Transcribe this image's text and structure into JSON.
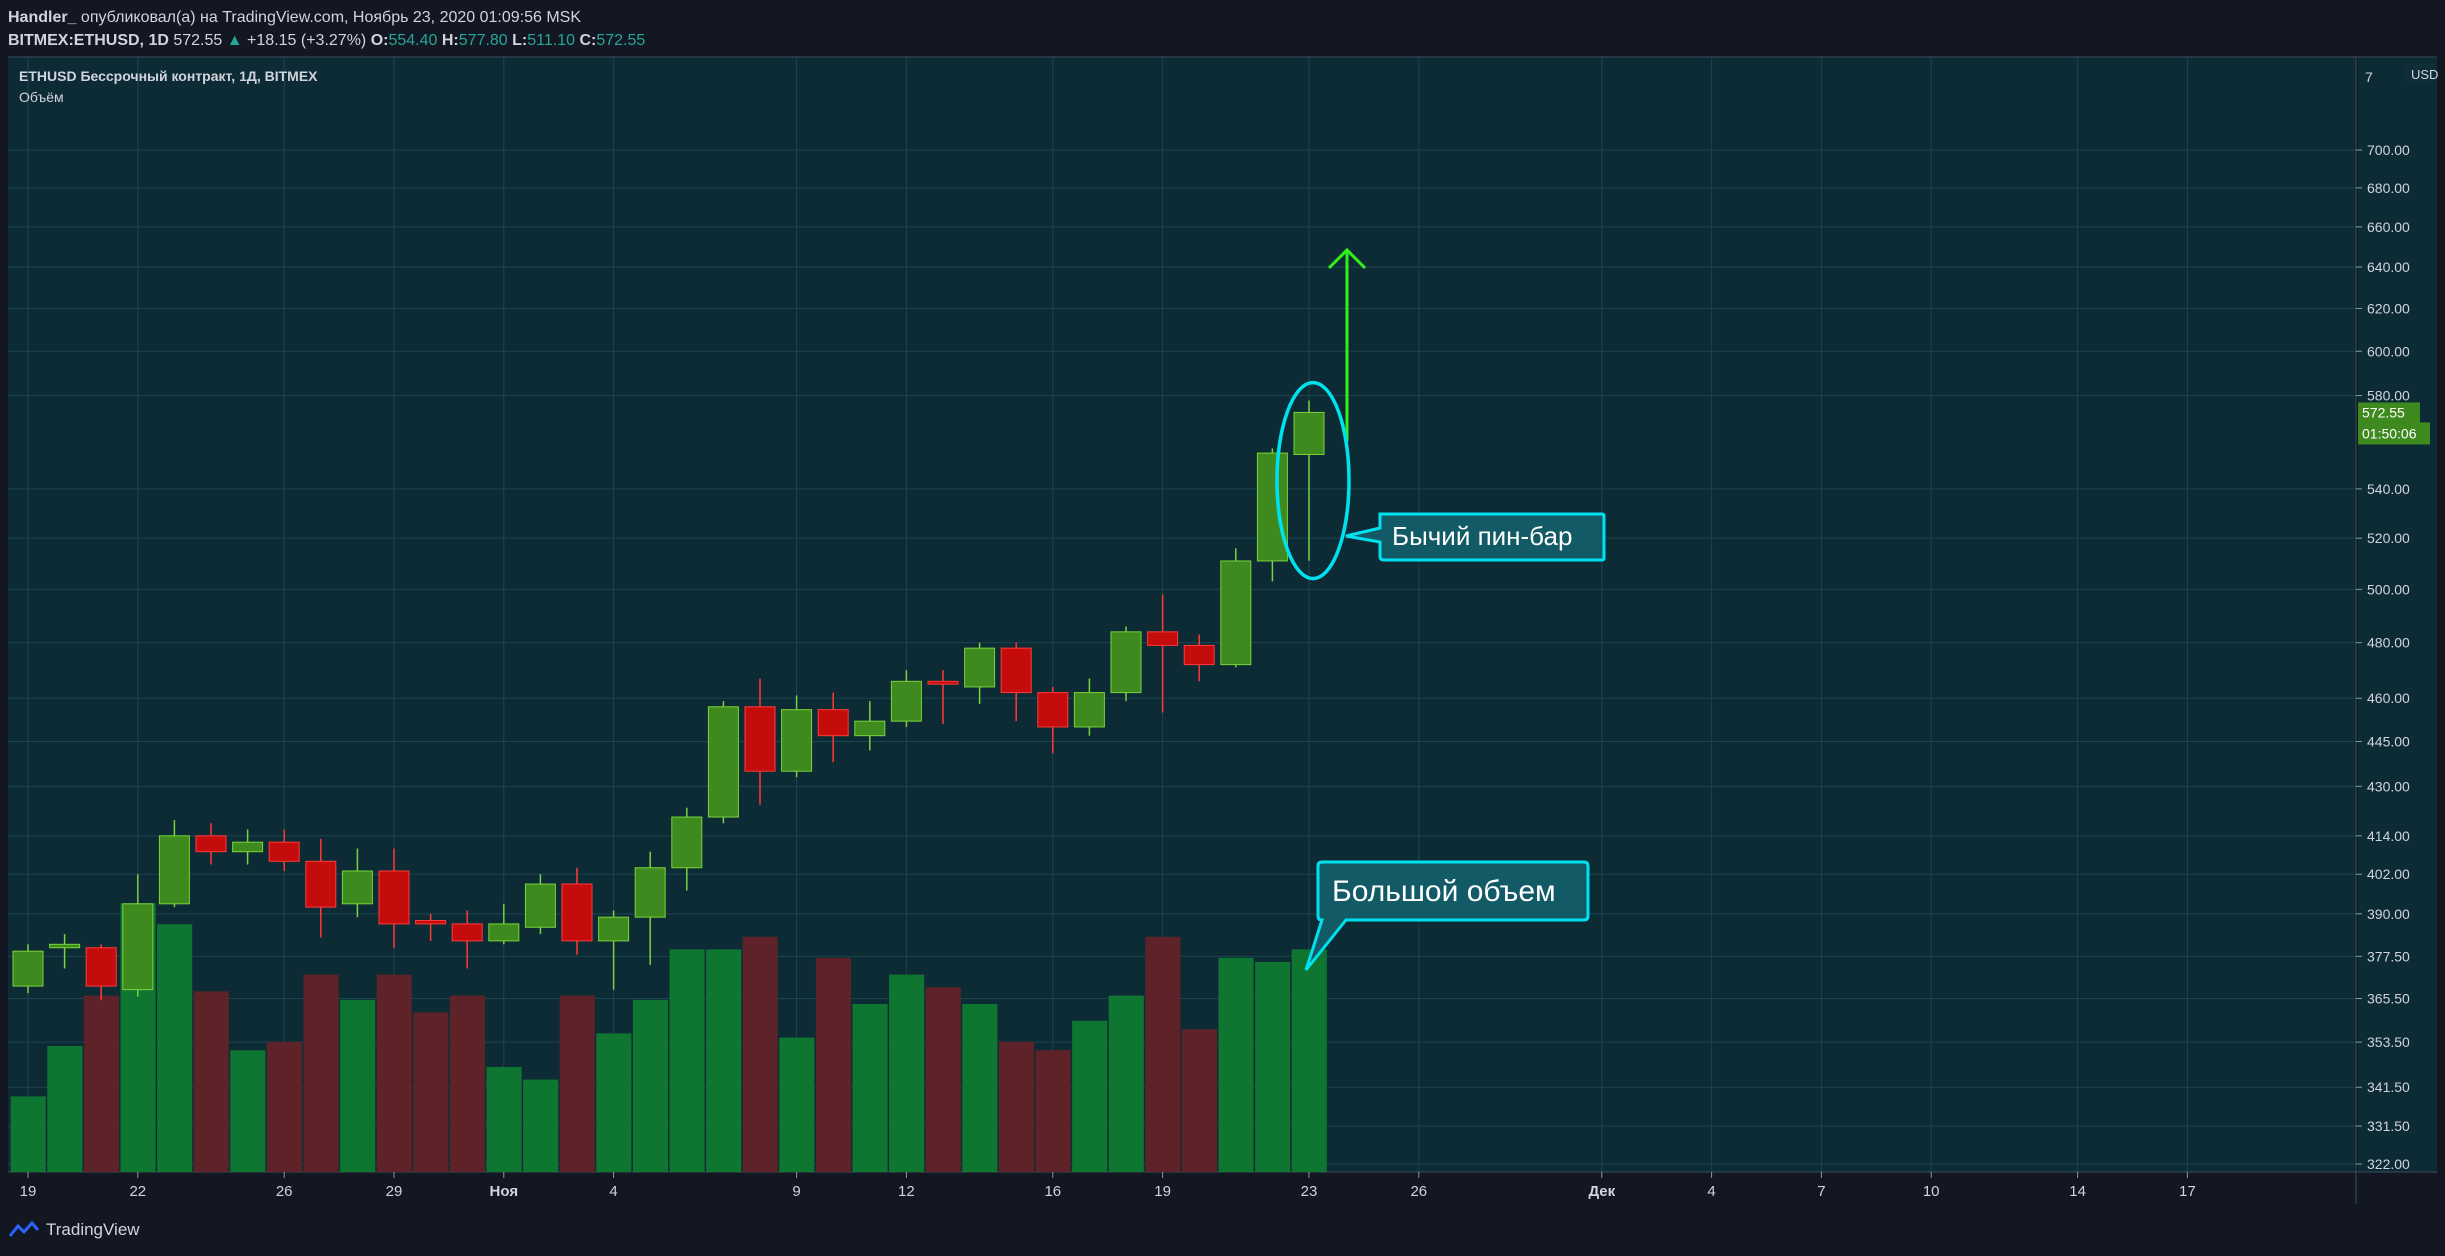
{
  "header": {
    "author": "Handler_",
    "published": "опубликовал(а) на TradingView.com, Ноябрь 23, 2020 01:09:56 MSK",
    "symbol": "BITMEX:ETHUSD, 1D",
    "last": "572.55",
    "change_arrow": "▲",
    "change": "+18.15 (+3.27%)",
    "o_label": "O:",
    "o": "554.40",
    "h_label": "H:",
    "h": "577.80",
    "l_label": "L:",
    "l": "511.10",
    "c_label": "C:",
    "c": "572.55"
  },
  "legend": {
    "title": "ETHUSD Бессрочный контракт, 1Д, BITMEX",
    "volume_label": "Объём"
  },
  "price_scale": {
    "currency": "USD",
    "top_label": "7",
    "last_price": "572.55",
    "countdown": "01:50:06"
  },
  "annotations": {
    "pin_bar": "Бычий пин-бар",
    "big_volume": "Большой объем"
  },
  "footer": {
    "brand": "TradingView"
  },
  "colors": {
    "background": "#0d2b34",
    "up": "#3e8a1f",
    "down": "#c40c0c",
    "vol_up": "#0f7632",
    "vol_down": "#5e2329",
    "accent_cyan": "#00e1ef",
    "arrow": "#2ff01c"
  },
  "chart_data": {
    "type": "candlestick",
    "y_scale": "log",
    "y_ticks": [
      "700.00",
      "680.00",
      "660.00",
      "640.00",
      "620.00",
      "600.00",
      "580.00",
      "540.00",
      "520.00",
      "500.00",
      "480.00",
      "460.00",
      "445.00",
      "430.00",
      "414.00",
      "402.00",
      "390.00",
      "377.50",
      "365.50",
      "353.50",
      "341.50",
      "331.50",
      "322.00"
    ],
    "x_ticks": [
      {
        "label": "19",
        "day": 0
      },
      {
        "label": "22",
        "day": 3
      },
      {
        "label": "26",
        "day": 7
      },
      {
        "label": "29",
        "day": 10
      },
      {
        "label": "Ноя",
        "day": 13
      },
      {
        "label": "4",
        "day": 16
      },
      {
        "label": "9",
        "day": 21
      },
      {
        "label": "12",
        "day": 24
      },
      {
        "label": "16",
        "day": 28
      },
      {
        "label": "19",
        "day": 31
      },
      {
        "label": "23",
        "day": 35
      },
      {
        "label": "26",
        "day": 38
      },
      {
        "label": "Дек",
        "day": 43
      },
      {
        "label": "4",
        "day": 46
      },
      {
        "label": "7",
        "day": 49
      },
      {
        "label": "10",
        "day": 52
      },
      {
        "label": "14",
        "day": 56
      },
      {
        "label": "17",
        "day": 59
      }
    ],
    "candles": [
      {
        "o": 369,
        "h": 381,
        "l": 367,
        "c": 379
      },
      {
        "o": 380,
        "h": 384,
        "l": 374,
        "c": 381
      },
      {
        "o": 380,
        "h": 381,
        "l": 365,
        "c": 369
      },
      {
        "o": 368,
        "h": 402,
        "l": 366,
        "c": 393
      },
      {
        "o": 393,
        "h": 419,
        "l": 392,
        "c": 414
      },
      {
        "o": 414,
        "h": 418,
        "l": 405,
        "c": 409
      },
      {
        "o": 409,
        "h": 416,
        "l": 405,
        "c": 412
      },
      {
        "o": 412,
        "h": 416,
        "l": 403,
        "c": 406
      },
      {
        "o": 406,
        "h": 413,
        "l": 383,
        "c": 392
      },
      {
        "o": 393,
        "h": 410,
        "l": 389,
        "c": 403
      },
      {
        "o": 403,
        "h": 410,
        "l": 380,
        "c": 387
      },
      {
        "o": 388,
        "h": 390,
        "l": 382,
        "c": 387
      },
      {
        "o": 387,
        "h": 391,
        "l": 374,
        "c": 382
      },
      {
        "o": 382,
        "h": 393,
        "l": 381,
        "c": 387
      },
      {
        "o": 386,
        "h": 402,
        "l": 384,
        "c": 399
      },
      {
        "o": 399,
        "h": 404,
        "l": 378,
        "c": 382
      },
      {
        "o": 382,
        "h": 391,
        "l": 368,
        "c": 389
      },
      {
        "o": 389,
        "h": 409,
        "l": 375,
        "c": 404
      },
      {
        "o": 404,
        "h": 423,
        "l": 397,
        "c": 420
      },
      {
        "o": 420,
        "h": 459,
        "l": 418,
        "c": 457
      },
      {
        "o": 457,
        "h": 467,
        "l": 424,
        "c": 435
      },
      {
        "o": 435,
        "h": 461,
        "l": 433,
        "c": 456
      },
      {
        "o": 456,
        "h": 462,
        "l": 438,
        "c": 447
      },
      {
        "o": 447,
        "h": 459,
        "l": 442,
        "c": 452
      },
      {
        "o": 452,
        "h": 470,
        "l": 450,
        "c": 466
      },
      {
        "o": 466,
        "h": 470,
        "l": 451,
        "c": 465
      },
      {
        "o": 464,
        "h": 480,
        "l": 458,
        "c": 478
      },
      {
        "o": 478,
        "h": 480,
        "l": 452,
        "c": 462
      },
      {
        "o": 462,
        "h": 464,
        "l": 441,
        "c": 450
      },
      {
        "o": 450,
        "h": 467,
        "l": 447,
        "c": 462
      },
      {
        "o": 462,
        "h": 486,
        "l": 459,
        "c": 484
      },
      {
        "o": 484,
        "h": 498,
        "l": 455,
        "c": 479
      },
      {
        "o": 479,
        "h": 483,
        "l": 466,
        "c": 472
      },
      {
        "o": 472,
        "h": 516,
        "l": 471,
        "c": 511
      },
      {
        "o": 511,
        "h": 557,
        "l": 503,
        "c": 555
      },
      {
        "o": 554.4,
        "h": 577.8,
        "l": 511.1,
        "c": 572.55
      }
    ],
    "volume": [
      {
        "v": 0.18,
        "up": true
      },
      {
        "v": 0.3,
        "up": true
      },
      {
        "v": 0.42,
        "up": false
      },
      {
        "v": 0.64,
        "up": true
      },
      {
        "v": 0.59,
        "up": true
      },
      {
        "v": 0.43,
        "up": false
      },
      {
        "v": 0.29,
        "up": true
      },
      {
        "v": 0.31,
        "up": false
      },
      {
        "v": 0.47,
        "up": false
      },
      {
        "v": 0.41,
        "up": true
      },
      {
        "v": 0.47,
        "up": false
      },
      {
        "v": 0.38,
        "up": false
      },
      {
        "v": 0.42,
        "up": false
      },
      {
        "v": 0.25,
        "up": true
      },
      {
        "v": 0.22,
        "up": true
      },
      {
        "v": 0.42,
        "up": false
      },
      {
        "v": 0.33,
        "up": true
      },
      {
        "v": 0.41,
        "up": true
      },
      {
        "v": 0.53,
        "up": true
      },
      {
        "v": 0.53,
        "up": true
      },
      {
        "v": 0.56,
        "up": false
      },
      {
        "v": 0.32,
        "up": true
      },
      {
        "v": 0.51,
        "up": false
      },
      {
        "v": 0.4,
        "up": true
      },
      {
        "v": 0.47,
        "up": true
      },
      {
        "v": 0.44,
        "up": false
      },
      {
        "v": 0.4,
        "up": true
      },
      {
        "v": 0.31,
        "up": false
      },
      {
        "v": 0.29,
        "up": false
      },
      {
        "v": 0.36,
        "up": true
      },
      {
        "v": 0.42,
        "up": true
      },
      {
        "v": 0.56,
        "up": false
      },
      {
        "v": 0.34,
        "up": false
      },
      {
        "v": 0.51,
        "up": true
      },
      {
        "v": 0.5,
        "up": true
      },
      {
        "v": 0.53,
        "up": true
      }
    ]
  }
}
